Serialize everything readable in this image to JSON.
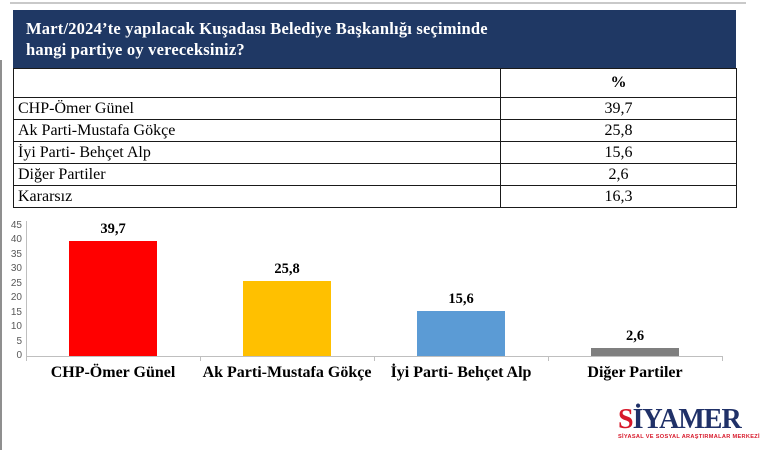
{
  "header": {
    "line1": "Mart/2024’te yapılacak Kuşadası Belediye Başkanlığı seçiminde",
    "line2": "hangi partiye oy vereceksiniz?"
  },
  "table": {
    "value_column_header": "%",
    "rows": [
      {
        "label": "CHP-Ömer Günel",
        "value": "39,7"
      },
      {
        "label": "Ak Parti-Mustafa Gökçe",
        "value": "25,8"
      },
      {
        "label": "İyi Parti- Behçet Alp",
        "value": "15,6"
      },
      {
        "label": "Diğer Partiler",
        "value": "2,6"
      },
      {
        "label": "Kararsız",
        "value": "16,3"
      }
    ]
  },
  "chart_data": {
    "type": "bar",
    "categories": [
      "CHP-Ömer Günel",
      "Ak Parti-Mustafa Gökçe",
      "İyi Parti- Behçet Alp",
      "Diğer Partiler"
    ],
    "values": [
      39.7,
      25.8,
      15.6,
      2.6
    ],
    "value_labels": [
      "39,7",
      "25,8",
      "15,6",
      "2,6"
    ],
    "bar_colors": [
      "#FF0000",
      "#FFC000",
      "#5B9BD5",
      "#7F7F7F"
    ],
    "title": "",
    "xlabel": "",
    "ylabel": "",
    "ylim": [
      0,
      45
    ],
    "yticks": [
      0,
      5,
      10,
      15,
      20,
      25,
      30,
      35,
      40,
      45
    ],
    "grid": false,
    "legend": false
  },
  "colors": {
    "header_bg": "#1F3864",
    "axis_line": "#BFBFBF",
    "ytick_label": "#595959",
    "logo_red": "#D7182A",
    "logo_navy": "#203168"
  },
  "logo": {
    "first_letter": "S",
    "rest": "İYAMER",
    "tagline": "SİYASAL VE SOSYAL ARAŞTIRMALAR MERKEZİ"
  }
}
